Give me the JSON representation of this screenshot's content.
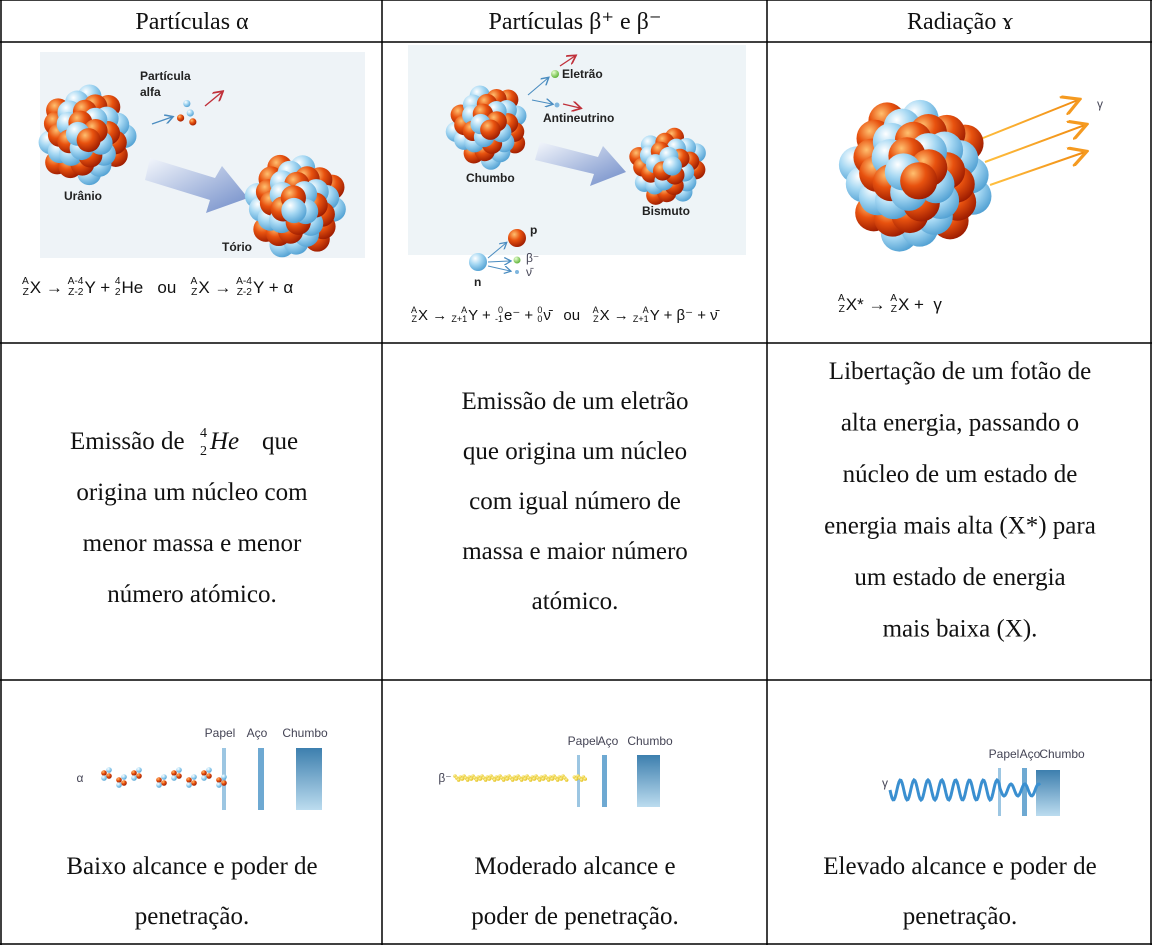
{
  "table": {
    "header": [
      "Partículas α",
      "Partículas β⁺ e β⁻",
      "Radiação ɤ"
    ],
    "illustrations": [
      {
        "labels": [
          "Partícula",
          "alfa",
          "Urânio",
          "Tório"
        ],
        "formula": [
          {
            "sup": "A",
            "sub": "Z"
          },
          "X → ",
          {
            "sup": "A-4",
            "sub": "Z-2"
          },
          "Y + ",
          {
            "sup": "4",
            "sub": "2"
          },
          "He   ou   ",
          {
            "sup": "A",
            "sub": "Z"
          },
          "X → ",
          {
            "sup": "A-4",
            "sub": "Z-2"
          },
          "Y + α"
        ]
      },
      {
        "labels": [
          "Eletrão",
          "Antineutrino",
          "Chumbo",
          "Bismuto",
          "p",
          "β⁻",
          "ν̄",
          "n"
        ],
        "formula": [
          {
            "sup": "A",
            "sub": "Z"
          },
          "X → ",
          {
            "sup": "A",
            "sub": "Z+1"
          },
          "Y + ",
          {
            "sup": "0",
            "sub": "-1"
          },
          "e⁻ + ",
          {
            "sup": "0",
            "sub": "0"
          },
          "ν̄   ou   ",
          {
            "sup": "A",
            "sub": "Z"
          },
          "X → ",
          {
            "sup": "A",
            "sub": "Z+1"
          },
          "Y + β⁻ + ν̄"
        ]
      },
      {
        "labels": [
          "γ"
        ],
        "formula": [
          {
            "sup": "A",
            "sub": "Z"
          },
          "X* → ",
          {
            "sup": "A",
            "sub": "Z"
          },
          "X +  γ"
        ]
      }
    ],
    "descriptions": [
      {
        "lead": "Emissão de",
        "sup": "4",
        "sub": "2",
        "symbol": "He",
        "rest": "que",
        "lines": [
          "origina um núcleo com",
          "menor massa e menor",
          "número atómico."
        ]
      },
      {
        "lines": [
          "Emissão de um eletrão",
          "que origina um núcleo",
          "com igual número de",
          "massa e maior número",
          "atómico."
        ]
      },
      {
        "lines": [
          "Libertação de um fotão de",
          "alta energia, passando o",
          "núcleo de um estado de",
          "energia mais alta (X*) para",
          "um estado de energia",
          "mais baixa (X)."
        ]
      }
    ],
    "penetration": [
      {
        "particle": "α",
        "shields": [
          "Papel",
          "Aço",
          "Chumbo"
        ],
        "summary": [
          "Baixo alcance e poder de",
          "penetração."
        ]
      },
      {
        "particle": "β⁻",
        "shields": [
          "Papel",
          "Aço",
          "Chumbo"
        ],
        "summary": [
          "Moderado alcance e",
          "poder de penetração."
        ]
      },
      {
        "particle": "γ",
        "shields": [
          "Papel",
          "Aço",
          "Chumbo"
        ],
        "summary": [
          "Elevado alcance e poder de",
          "penetração."
        ]
      }
    ]
  }
}
